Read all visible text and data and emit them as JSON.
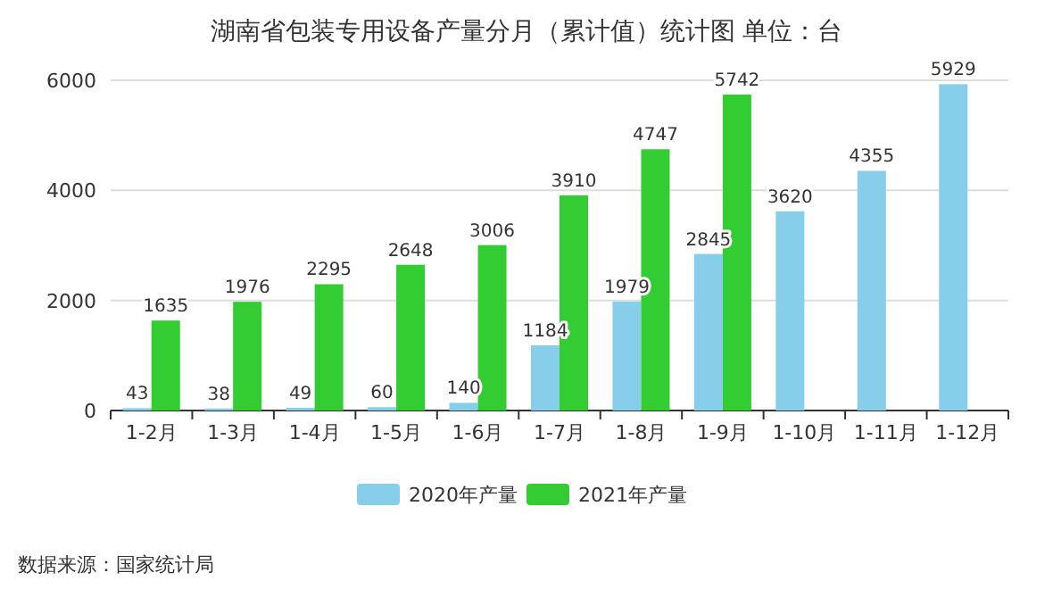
{
  "chart_data": {
    "type": "bar",
    "title": "湖南省包装专用设备产量分月（累计值）统计图 单位：台",
    "categories": [
      "1-2月",
      "1-3月",
      "1-4月",
      "1-5月",
      "1-6月",
      "1-7月",
      "1-8月",
      "1-9月",
      "1-10月",
      "1-11月",
      "1-12月"
    ],
    "series": [
      {
        "name": "2020年产量",
        "color": "#87ceeb",
        "values": [
          43,
          38,
          49,
          60,
          140,
          1184,
          1979,
          2845,
          3620,
          4355,
          5929
        ]
      },
      {
        "name": "2021年产量",
        "color": "#33cc33",
        "values": [
          1635,
          1976,
          2295,
          2648,
          3006,
          3910,
          4747,
          5742,
          null,
          null,
          null
        ]
      }
    ],
    "ylim": [
      0,
      6000
    ],
    "yticks": [
      0,
      2000,
      4000,
      6000
    ],
    "grid": "y",
    "legend": "bottom",
    "data_labels": true,
    "annotations": [
      "数据来源：国家统计局"
    ]
  }
}
